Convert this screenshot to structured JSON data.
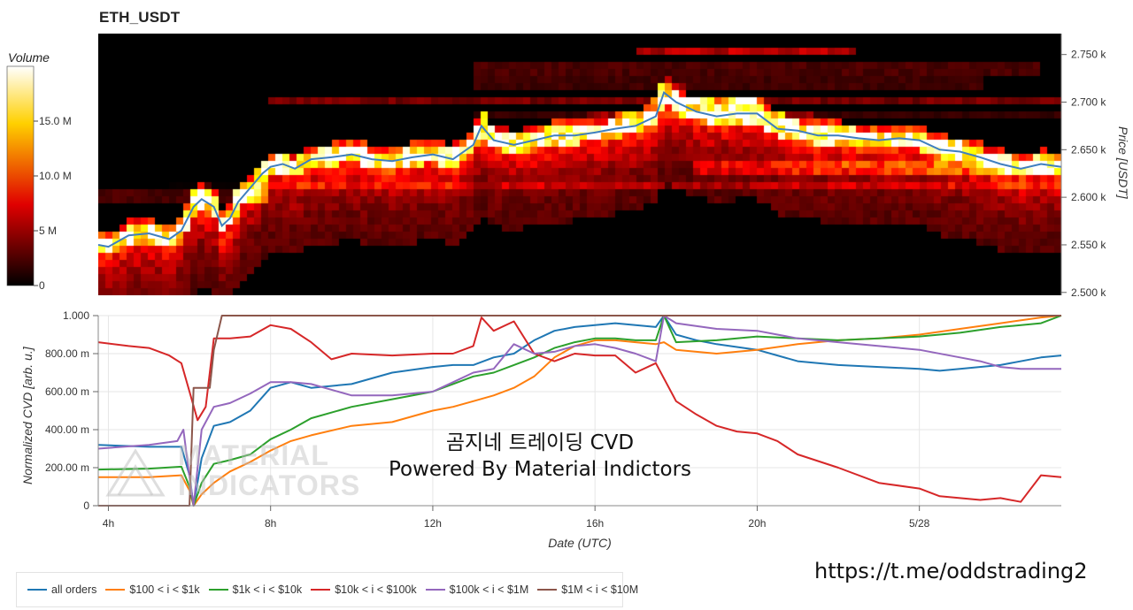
{
  "title": "ETH_USDT",
  "colorbar": {
    "label": "Volume",
    "ticks": [
      "0",
      "5 M",
      "10.0 M",
      "15.0 M"
    ],
    "tick_values": [
      0,
      5,
      10,
      15
    ],
    "max": 20,
    "colormap": "hot"
  },
  "overlay": {
    "line1": "곰지네 트레이딩 CVD",
    "line2": "Powered By Material Indictors"
  },
  "telegram": "https://t.me/oddstrading2",
  "watermark": {
    "line1": "MATERIAL",
    "line2": "INDICATORS"
  },
  "chart_data": [
    {
      "type": "heatmap",
      "title": "ETH_USDT",
      "ylabel": "Price [USDT]",
      "ylim": [
        2497,
        2772
      ],
      "yticks": [
        2500,
        2550,
        2600,
        2650,
        2700,
        2750
      ],
      "ytick_labels": [
        "2.500 k",
        "2.550 k",
        "2.600 k",
        "2.650 k",
        "2.700 k",
        "2.750 k"
      ],
      "x_range_hours": [
        3.75,
        27.5
      ],
      "price_series": {
        "name": "price",
        "color": "#3f7fbf",
        "x": [
          3.75,
          4.0,
          4.5,
          5.0,
          5.5,
          5.8,
          6.1,
          6.3,
          6.6,
          6.8,
          7.0,
          7.2,
          7.5,
          7.8,
          8.0,
          8.3,
          8.6,
          9.0,
          9.5,
          10.0,
          10.5,
          11.0,
          11.5,
          12.0,
          12.5,
          13.0,
          13.2,
          13.5,
          14.0,
          14.5,
          15.0,
          15.5,
          16.0,
          16.5,
          17.0,
          17.5,
          17.7,
          18.0,
          18.5,
          19.0,
          19.5,
          20.0,
          20.5,
          21.0,
          21.5,
          22.0,
          22.5,
          23.0,
          23.5,
          24.0,
          24.5,
          25.0,
          25.5,
          26.0,
          26.5,
          27.0,
          27.5
        ],
        "y": [
          2550,
          2548,
          2560,
          2562,
          2556,
          2565,
          2590,
          2598,
          2590,
          2570,
          2578,
          2595,
          2610,
          2625,
          2632,
          2635,
          2630,
          2640,
          2642,
          2645,
          2640,
          2638,
          2642,
          2645,
          2640,
          2655,
          2675,
          2660,
          2655,
          2660,
          2665,
          2665,
          2668,
          2672,
          2675,
          2685,
          2710,
          2700,
          2690,
          2685,
          2688,
          2688,
          2672,
          2670,
          2665,
          2665,
          2662,
          2660,
          2662,
          2660,
          2650,
          2648,
          2642,
          2635,
          2630,
          2635,
          2632
        ]
      }
    },
    {
      "type": "line",
      "xlabel": "Date (UTC)",
      "ylabel": "Normalized CVD [arb. u.]",
      "xlim": [
        3.75,
        27.5
      ],
      "ylim": [
        0,
        1000
      ],
      "xticks": [
        4,
        8,
        12,
        16,
        20,
        24
      ],
      "xtick_labels": [
        "4h",
        "8h",
        "12h",
        "16h",
        "20h",
        "5/28"
      ],
      "yticks": [
        0,
        200,
        400,
        600,
        800,
        1000
      ],
      "ytick_labels": [
        "0",
        "200.00 m",
        "400.00 m",
        "600.00 m",
        "800.00 m",
        "1.000"
      ],
      "series": [
        {
          "name": "all orders",
          "color": "#1f77b4",
          "x": [
            3.75,
            5.0,
            5.8,
            6.0,
            6.1,
            6.3,
            6.6,
            7.0,
            7.5,
            8.0,
            8.5,
            9.0,
            10.0,
            11.0,
            12.0,
            12.5,
            13.0,
            13.5,
            14.0,
            14.5,
            15.0,
            15.5,
            16.0,
            16.5,
            17.0,
            17.5,
            17.7,
            18.0,
            18.5,
            19.0,
            20.0,
            20.5,
            21.0,
            22.0,
            23.0,
            24.0,
            24.5,
            25.0,
            26.0,
            27.0,
            27.5
          ],
          "y": [
            320,
            310,
            310,
            160,
            0,
            250,
            420,
            440,
            500,
            620,
            650,
            620,
            640,
            700,
            730,
            740,
            740,
            780,
            800,
            870,
            920,
            940,
            950,
            960,
            950,
            940,
            1000,
            900,
            870,
            850,
            820,
            790,
            760,
            740,
            730,
            720,
            710,
            720,
            740,
            780,
            790
          ]
        },
        {
          "name": "$100 < i < $1k",
          "color": "#ff7f0e",
          "x": [
            3.75,
            5.0,
            5.8,
            6.0,
            6.1,
            6.3,
            6.6,
            7.0,
            7.5,
            8.0,
            8.5,
            9.0,
            10.0,
            11.0,
            12.0,
            12.5,
            13.0,
            13.5,
            14.0,
            14.5,
            15.0,
            15.5,
            16.0,
            16.5,
            17.0,
            17.5,
            17.7,
            18.0,
            19.0,
            20.0,
            21.0,
            22.0,
            23.0,
            24.0,
            25.0,
            26.0,
            27.0,
            27.5
          ],
          "y": [
            150,
            150,
            160,
            80,
            0,
            60,
            120,
            180,
            230,
            290,
            340,
            370,
            420,
            440,
            500,
            520,
            550,
            580,
            620,
            680,
            780,
            840,
            870,
            870,
            860,
            850,
            860,
            820,
            800,
            820,
            850,
            870,
            880,
            900,
            930,
            960,
            990,
            1000
          ]
        },
        {
          "name": "$1k < i < $10k",
          "color": "#2ca02c",
          "x": [
            3.75,
            5.0,
            5.8,
            6.0,
            6.1,
            6.3,
            6.6,
            7.0,
            7.5,
            8.0,
            8.5,
            9.0,
            10.0,
            11.0,
            12.0,
            12.5,
            13.0,
            13.5,
            14.0,
            14.5,
            15.0,
            15.5,
            16.0,
            16.5,
            17.0,
            17.5,
            17.7,
            18.0,
            19.0,
            20.0,
            21.0,
            22.0,
            23.0,
            24.0,
            25.0,
            26.0,
            27.0,
            27.5
          ],
          "y": [
            190,
            195,
            205,
            100,
            0,
            120,
            220,
            240,
            270,
            350,
            400,
            460,
            520,
            560,
            600,
            640,
            680,
            700,
            740,
            780,
            830,
            860,
            880,
            880,
            870,
            870,
            1000,
            860,
            870,
            890,
            880,
            870,
            880,
            890,
            910,
            940,
            960,
            1000
          ]
        },
        {
          "name": "$10k < i < $100k",
          "color": "#d62728",
          "x": [
            3.75,
            4.5,
            5.0,
            5.5,
            5.8,
            6.0,
            6.2,
            6.4,
            6.6,
            7.0,
            7.5,
            8.0,
            8.5,
            9.0,
            9.5,
            10.0,
            11.0,
            12.0,
            12.5,
            13.0,
            13.2,
            13.5,
            14.0,
            14.5,
            15.0,
            15.5,
            16.0,
            16.5,
            17.0,
            17.5,
            18.0,
            18.5,
            19.0,
            19.5,
            20.0,
            20.5,
            21.0,
            22.0,
            23.0,
            24.0,
            24.5,
            25.0,
            25.5,
            26.0,
            26.5,
            27.0,
            27.5
          ],
          "y": [
            860,
            840,
            830,
            790,
            750,
            600,
            450,
            520,
            880,
            880,
            890,
            950,
            930,
            860,
            770,
            800,
            790,
            800,
            800,
            840,
            990,
            920,
            970,
            800,
            760,
            800,
            790,
            790,
            700,
            750,
            550,
            480,
            420,
            390,
            380,
            340,
            270,
            200,
            120,
            90,
            50,
            40,
            30,
            40,
            20,
            160,
            150
          ]
        },
        {
          "name": "$100k < i < $1M",
          "color": "#9467bd",
          "x": [
            3.75,
            5.0,
            5.7,
            5.85,
            6.0,
            6.1,
            6.3,
            6.6,
            7.0,
            7.5,
            8.0,
            8.5,
            9.0,
            10.0,
            11.0,
            12.0,
            12.5,
            13.0,
            13.5,
            14.0,
            14.5,
            15.0,
            15.5,
            16.0,
            16.5,
            17.0,
            17.5,
            17.7,
            18.0,
            19.0,
            20.0,
            21.0,
            22.0,
            23.0,
            24.0,
            25.0,
            25.5,
            26.0,
            26.5,
            27.0,
            27.5
          ],
          "y": [
            300,
            320,
            340,
            400,
            150,
            0,
            400,
            520,
            540,
            590,
            650,
            650,
            640,
            580,
            580,
            600,
            650,
            700,
            720,
            850,
            800,
            810,
            840,
            850,
            830,
            800,
            760,
            1000,
            960,
            930,
            920,
            880,
            860,
            840,
            820,
            780,
            760,
            730,
            720,
            720,
            720
          ]
        },
        {
          "name": "$1M < i < $10M",
          "color": "#8c564b",
          "x": [
            3.75,
            5.9,
            6.0,
            6.1,
            6.2,
            6.5,
            6.6,
            6.8,
            7.0,
            27.5
          ],
          "y": [
            0,
            0,
            0,
            620,
            620,
            620,
            820,
            1000,
            1000,
            1000
          ]
        }
      ]
    }
  ]
}
